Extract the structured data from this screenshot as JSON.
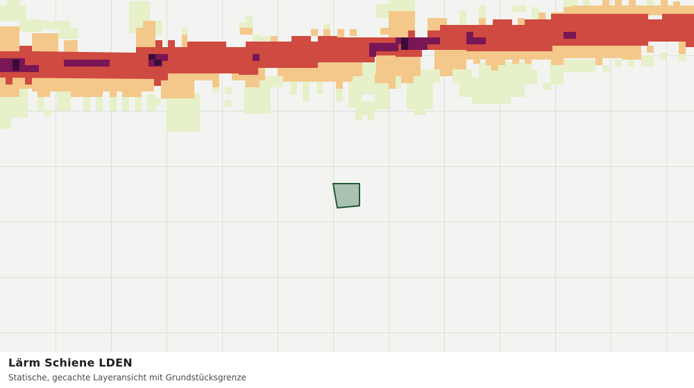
{
  "caption": {
    "title": "Lärm Schiene LDEN",
    "subtitle": "Statische, gecachte Layeransicht mit Grundstücksgrenze"
  },
  "map": {
    "background_color": "#f3f4f1",
    "grid_color": "#dcdfd9",
    "noise_class_colors": {
      "class_1": "#e6f0c9",
      "class_2": "#f4c88a",
      "class_3": "#cf4a40",
      "class_4": "#7a1655",
      "class_5": "#3b0b3a"
    },
    "parcel": {
      "fill_color": "#a9c2b2",
      "stroke_color": "#1f5a32"
    }
  }
}
